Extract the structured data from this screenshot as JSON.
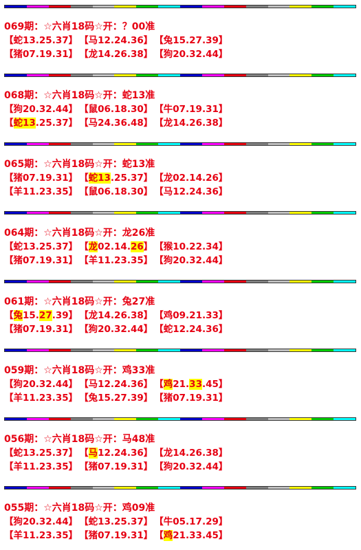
{
  "divider_colors": [
    "#0000cc",
    "#ff00ff",
    "#e60012",
    "#808080",
    "#c0c0c0",
    "#ffff00",
    "#00cc00",
    "#00ffff"
  ],
  "posts": [
    {
      "title": "069期：☆六肖18码☆开：？00准",
      "rows": [
        [
          {
            "pre": "【蛇13.25.37",
            "hl": "",
            "post": "】"
          },
          {
            "pre": "【马12.24.36",
            "hl": "",
            "post": "】"
          },
          {
            "pre": "【兔15.27.39",
            "hl": "",
            "post": "】"
          }
        ],
        [
          {
            "pre": "【猪07.19.31",
            "hl": "",
            "post": "】"
          },
          {
            "pre": "【龙14.26.38",
            "hl": "",
            "post": "】"
          },
          {
            "pre": "【狗20.32.44",
            "hl": "",
            "post": "】"
          }
        ]
      ]
    },
    {
      "title": "068期：☆六肖18码☆开：蛇13准",
      "rows": [
        [
          {
            "pre": "【狗20.32.44",
            "hl": "",
            "post": "】"
          },
          {
            "pre": "【鼠06.18.30",
            "hl": "",
            "post": "】"
          },
          {
            "pre": "【牛07.19.31",
            "hl": "",
            "post": "】"
          }
        ],
        [
          {
            "pre": "【",
            "hl": "蛇13",
            "post": ".25.37】"
          },
          {
            "pre": "【马24.36.48",
            "hl": "",
            "post": "】"
          },
          {
            "pre": "【龙14.26.38",
            "hl": "",
            "post": "】"
          }
        ]
      ]
    },
    {
      "title": "065期：☆六肖18码☆开：蛇13准",
      "rows": [
        [
          {
            "pre": "【猪07.19.31",
            "hl": "",
            "post": "】"
          },
          {
            "pre": "【",
            "hl": "蛇13",
            "post": ".25.37】"
          },
          {
            "pre": "【龙02.14.26",
            "hl": "",
            "post": "】"
          }
        ],
        [
          {
            "pre": "【羊11.23.35",
            "hl": "",
            "post": "】"
          },
          {
            "pre": "【鼠06.18.30",
            "hl": "",
            "post": "】"
          },
          {
            "pre": "【马12.24.36",
            "hl": "",
            "post": "】"
          }
        ]
      ]
    },
    {
      "title": "064期：☆六肖18码☆开：龙26准",
      "rows": [
        [
          {
            "pre": "【蛇13.25.37",
            "hl": "",
            "post": "】"
          },
          {
            "pre": "【",
            "hl": "龙",
            "post": "02.14.",
            "hl2": "26",
            "post2": "】"
          },
          {
            "pre": "【猴10.22.34",
            "hl": "",
            "post": "】"
          }
        ],
        [
          {
            "pre": "【猪07.19.31",
            "hl": "",
            "post": "】"
          },
          {
            "pre": "【羊11.23.35",
            "hl": "",
            "post": "】"
          },
          {
            "pre": "【狗20.32.44",
            "hl": "",
            "post": "】"
          }
        ]
      ]
    },
    {
      "title": "061期：☆六肖18码☆开：兔27准",
      "rows": [
        [
          {
            "pre": "【",
            "hl": "兔",
            "post": "15.",
            "hl2": "27",
            "post2": ".39】"
          },
          {
            "pre": "【龙14.26.38",
            "hl": "",
            "post": "】"
          },
          {
            "pre": "【鸡09.21.33",
            "hl": "",
            "post": "】"
          }
        ],
        [
          {
            "pre": "【猪07.19.31",
            "hl": "",
            "post": "】"
          },
          {
            "pre": "【狗20.32.44",
            "hl": "",
            "post": "】"
          },
          {
            "pre": "【蛇12.24.36",
            "hl": "",
            "post": "】"
          }
        ]
      ]
    },
    {
      "title": "059期：☆六肖18码☆开：鸡33准",
      "rows": [
        [
          {
            "pre": "【狗20.32.44",
            "hl": "",
            "post": "】"
          },
          {
            "pre": "【马12.24.36",
            "hl": "",
            "post": "】"
          },
          {
            "pre": "【",
            "hl": "鸡",
            "post": "21.",
            "hl2": "33",
            "post2": ".45】"
          }
        ],
        [
          {
            "pre": "【羊11.23.35",
            "hl": "",
            "post": "】"
          },
          {
            "pre": "【兔15.27.39",
            "hl": "",
            "post": "】"
          },
          {
            "pre": "【猪07.19.31",
            "hl": "",
            "post": "】"
          }
        ]
      ]
    },
    {
      "title": "056期：☆六肖18码☆开：马48准",
      "rows": [
        [
          {
            "pre": "【蛇13.25.37",
            "hl": "",
            "post": "】"
          },
          {
            "pre": "【",
            "hl": "马",
            "post": "12.24.36】"
          },
          {
            "pre": "【龙14.26.38",
            "hl": "",
            "post": "】"
          }
        ],
        [
          {
            "pre": "【羊11.23.35",
            "hl": "",
            "post": "】"
          },
          {
            "pre": "【猪07.19.31",
            "hl": "",
            "post": "】"
          },
          {
            "pre": "【狗20.32.44",
            "hl": "",
            "post": "】"
          }
        ]
      ]
    },
    {
      "title": "055期：☆六肖18码☆开：鸡09准",
      "rows": [
        [
          {
            "pre": "【狗20.32.44",
            "hl": "",
            "post": "】"
          },
          {
            "pre": "【蛇13.25.37",
            "hl": "",
            "post": "】"
          },
          {
            "pre": "【牛05.17.29",
            "hl": "",
            "post": "】"
          }
        ],
        [
          {
            "pre": "【羊11.23.35",
            "hl": "",
            "post": "】"
          },
          {
            "pre": "【猪07.19.31",
            "hl": "",
            "post": "】"
          },
          {
            "pre": "【",
            "hl": "鸡",
            "post": "21.33.45】"
          }
        ]
      ]
    }
  ]
}
